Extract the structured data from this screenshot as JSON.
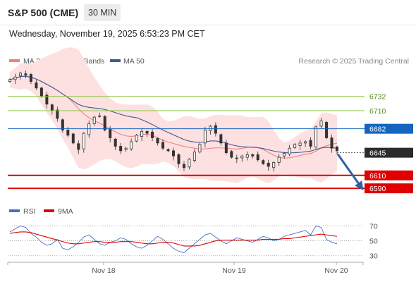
{
  "header": {
    "title": "S&P 500 (CME)",
    "timeframe": "30 MIN",
    "datetime": "Wednesday, November 19, 2025 6:53:23 PM CET"
  },
  "legend": {
    "ma20_bb": "MA 20 + Bollinger Bands",
    "ma50": "MA 50",
    "credit": "Research © 2025 Trading Central",
    "rsi": "RSI",
    "ma9": "9MA"
  },
  "colors": {
    "ma20": "#f08080",
    "bb_fill": "#fde0e0",
    "ma50": "#3e5a99",
    "resistance": "#8cc63f",
    "pivot": "#1565c0",
    "support": "#e00000",
    "price": "#333333",
    "rsi": "#4472c4",
    "rsi_ma": "#e00000"
  },
  "chart_data": [
    {
      "type": "candlestick",
      "x": [
        "Nov 18",
        "Nov 19",
        "Nov 20"
      ],
      "ylim": [
        6576,
        6772
      ],
      "price_close_series": [
        6758,
        6762,
        6768,
        6765,
        6755,
        6745,
        6732,
        6720,
        6710,
        6698,
        6680,
        6672,
        6660,
        6650,
        6675,
        6690,
        6700,
        6702,
        6680,
        6668,
        6655,
        6648,
        6652,
        6662,
        6672,
        6678,
        6675,
        6668,
        6660,
        6652,
        6648,
        6640,
        6628,
        6622,
        6635,
        6646,
        6658,
        6680,
        6686,
        6675,
        6660,
        6645,
        6638,
        6636,
        6640,
        6642,
        6640,
        6634,
        6628,
        6624,
        6630,
        6638,
        6644,
        6652,
        6658,
        6660,
        6662,
        6655,
        6685,
        6694,
        6668,
        6652,
        6648
      ],
      "levels": [
        {
          "label": "6732",
          "value": 6732,
          "kind": "resistance"
        },
        {
          "label": "6710",
          "value": 6710,
          "kind": "resistance"
        },
        {
          "label": "6682",
          "value": 6682,
          "kind": "pivot"
        },
        {
          "label": "6610",
          "value": 6610,
          "kind": "support"
        },
        {
          "label": "6590",
          "value": 6590,
          "kind": "support"
        }
      ],
      "current_price": {
        "label": "6645",
        "value": 6645
      },
      "forecast_arrow": {
        "direction": "down",
        "target": 6590
      },
      "series": [
        {
          "name": "MA 20 + Bollinger Bands"
        },
        {
          "name": "MA 50"
        }
      ]
    },
    {
      "type": "line",
      "x": [
        "Nov 18",
        "Nov 19",
        "Nov 20"
      ],
      "ylim": [
        25,
        78
      ],
      "ticks": [
        {
          "label": "70",
          "value": 70
        },
        {
          "label": "50",
          "value": 50
        },
        {
          "label": "30",
          "value": 30
        }
      ],
      "rsi_series": [
        62,
        66,
        70,
        68,
        60,
        55,
        48,
        44,
        46,
        52,
        40,
        38,
        42,
        48,
        55,
        58,
        52,
        46,
        44,
        48,
        50,
        54,
        52,
        46,
        42,
        40,
        44,
        50,
        56,
        52,
        46,
        40,
        36,
        34,
        40,
        46,
        52,
        58,
        60,
        55,
        50,
        46,
        50,
        54,
        52,
        50,
        48,
        52,
        56,
        54,
        50,
        52,
        56,
        58,
        60,
        62,
        64,
        58,
        70,
        68,
        52,
        48,
        46
      ],
      "rsi_ma_series": [
        60,
        61,
        62,
        62,
        61,
        59,
        57,
        55,
        53,
        51,
        49,
        47,
        46,
        46,
        47,
        48,
        49,
        49,
        48,
        48,
        48,
        49,
        49,
        49,
        48,
        47,
        46,
        46,
        47,
        48,
        48,
        47,
        45,
        43,
        43,
        43,
        44,
        46,
        48,
        50,
        51,
        51,
        51,
        51,
        51,
        51,
        51,
        51,
        52,
        52,
        52,
        52,
        53,
        53,
        54,
        55,
        56,
        57,
        58,
        59,
        58,
        57,
        56
      ],
      "series": [
        {
          "name": "RSI"
        },
        {
          "name": "9MA"
        }
      ]
    }
  ]
}
